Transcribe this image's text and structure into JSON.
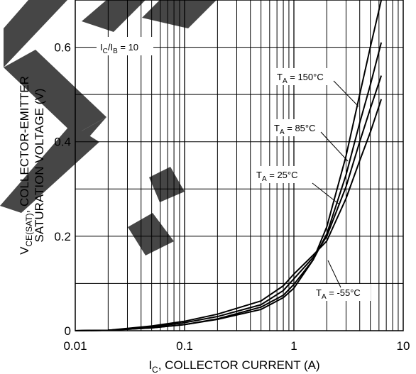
{
  "chart_data": {
    "type": "line",
    "xscale": "log",
    "xlim": [
      0.01,
      10
    ],
    "ylim": [
      0,
      0.7
    ],
    "x_ticks": [
      "0.01",
      "0.1",
      "1",
      "10"
    ],
    "y_ticks": [
      "0",
      "0.2",
      "0.4",
      "0.6"
    ],
    "xlabel": "I_C, COLLECTOR CURRENT (A)",
    "ylabel": "V_CE(SAT), COLLECTOR-EMITTER SATURATION VOLTAGE (V)",
    "grid": true,
    "condition_label": "I_C/I_B = 10",
    "series": [
      {
        "name": "T_A = 150°C",
        "x": [
          0.01,
          0.02,
          0.05,
          0.1,
          0.2,
          0.5,
          0.8,
          1.0,
          1.5,
          2.0,
          3.0,
          4.0,
          5.0,
          6.3
        ],
        "y": [
          0.0,
          0.001,
          0.006,
          0.013,
          0.024,
          0.045,
          0.07,
          0.09,
          0.15,
          0.22,
          0.37,
          0.5,
          0.6,
          0.7
        ]
      },
      {
        "name": "T_A = 85°C",
        "x": [
          0.01,
          0.02,
          0.05,
          0.1,
          0.2,
          0.5,
          0.8,
          1.0,
          1.5,
          2.0,
          3.0,
          4.0,
          5.0,
          6.3
        ],
        "y": [
          0.0,
          0.001,
          0.006,
          0.013,
          0.025,
          0.05,
          0.075,
          0.098,
          0.15,
          0.205,
          0.33,
          0.44,
          0.52,
          0.61
        ]
      },
      {
        "name": "T_A = 25°C",
        "x": [
          0.01,
          0.02,
          0.05,
          0.1,
          0.2,
          0.5,
          0.8,
          1.0,
          1.5,
          2.0,
          3.0,
          4.0,
          5.0,
          6.3
        ],
        "y": [
          0.0,
          0.001,
          0.008,
          0.017,
          0.03,
          0.055,
          0.085,
          0.11,
          0.155,
          0.2,
          0.305,
          0.4,
          0.47,
          0.54
        ]
      },
      {
        "name": "T_A = -55°C",
        "x": [
          0.01,
          0.02,
          0.05,
          0.1,
          0.2,
          0.5,
          0.8,
          1.0,
          1.5,
          2.0,
          3.0,
          4.0,
          5.0,
          6.3
        ],
        "y": [
          0.0,
          0.001,
          0.01,
          0.02,
          0.035,
          0.063,
          0.095,
          0.12,
          0.16,
          0.19,
          0.28,
          0.36,
          0.42,
          0.49
        ]
      }
    ]
  },
  "labels": {
    "condition": {
      "main": "I",
      "sub1": "C",
      "mid": "/I",
      "sub2": "B",
      "tail": " = 10"
    },
    "x_axis": {
      "main": "I",
      "sub": "C",
      "tail": ", COLLECTOR CURRENT (A)"
    },
    "y_axis_line1": {
      "main": "V",
      "sub": "CE(SAT)",
      "tail": ", COLLECTOR-EMITTER"
    },
    "y_axis_line2": "SATURATION VOLTAGE (V)",
    "series_labels": [
      {
        "main": "T",
        "sub": "A",
        "tail": " = 150°C"
      },
      {
        "main": "T",
        "sub": "A",
        "tail": " = 85°C"
      },
      {
        "main": "T",
        "sub": "A",
        "tail": " = 25°C"
      },
      {
        "main": "T",
        "sub": "A",
        "tail": " = -55°C"
      }
    ]
  },
  "colors": {
    "line": "#000000",
    "grid": "#000000",
    "watermark": "#333333"
  }
}
